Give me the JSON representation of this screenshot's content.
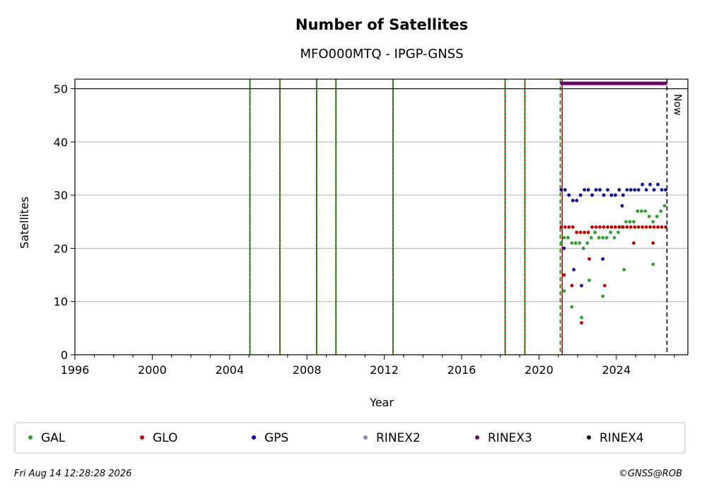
{
  "chart_data": {
    "type": "scatter",
    "title": "Number of Satellites",
    "subtitle": "MFO000MTQ - IPGP-GNSS",
    "xlabel": "Year",
    "ylabel": "Satellites",
    "xlim": [
      1996,
      2027.7
    ],
    "ylim": [
      0,
      51.8
    ],
    "x_ticks": [
      1996,
      2000,
      2004,
      2008,
      2012,
      2016,
      2020,
      2024
    ],
    "y_ticks": [
      0,
      10,
      20,
      30,
      40,
      50
    ],
    "grid": "y",
    "reference_line_y": 50,
    "now_label": "Now",
    "now_x": 2026.62,
    "event_lines_x": [
      2005.05,
      2006.6,
      2008.5,
      2009.5,
      2012.45,
      2018.25,
      2019.27
    ],
    "dashed_line_x": 2021.1,
    "red_line_x": 2021.2,
    "rinex3_bar": {
      "from": 2021.1,
      "to": 2026.62,
      "y": 51
    },
    "series": [
      {
        "name": "GAL",
        "color": "#2ca02c",
        "x": [
          2021.15,
          2021.3,
          2021.5,
          2021.7,
          2021.9,
          2022.1,
          2022.3,
          2022.5,
          2022.7,
          2022.9,
          2023.1,
          2023.3,
          2023.5,
          2023.7,
          2023.9,
          2024.1,
          2024.3,
          2024.5,
          2024.7,
          2024.9,
          2025.1,
          2025.3,
          2025.5,
          2025.7,
          2025.9,
          2026.1,
          2026.3,
          2026.5,
          2021.3,
          2021.7,
          2022.2,
          2022.6,
          2023.3,
          2024.4,
          2025.9
        ],
        "y": [
          21,
          22,
          22,
          21,
          21,
          21,
          20,
          21,
          22,
          23,
          22,
          22,
          22,
          23,
          22,
          23,
          24,
          25,
          25,
          25,
          27,
          27,
          27,
          26,
          25,
          26,
          27,
          28,
          12,
          9,
          7,
          14,
          11,
          16,
          17
        ]
      },
      {
        "name": "GLO",
        "color": "#c00000",
        "x": [
          2021.15,
          2021.35,
          2021.55,
          2021.75,
          2021.95,
          2022.15,
          2022.35,
          2022.55,
          2022.75,
          2022.95,
          2023.15,
          2023.35,
          2023.55,
          2023.75,
          2023.95,
          2024.15,
          2024.35,
          2024.55,
          2024.75,
          2024.95,
          2025.15,
          2025.35,
          2025.55,
          2025.75,
          2025.95,
          2026.15,
          2026.35,
          2026.55,
          2021.3,
          2021.7,
          2022.2,
          2022.6,
          2023.4,
          2024.9,
          2025.9
        ],
        "y": [
          24,
          24,
          24,
          24,
          23,
          23,
          23,
          23,
          24,
          24,
          24,
          24,
          24,
          24,
          24,
          24,
          24,
          24,
          24,
          24,
          24,
          24,
          24,
          24,
          24,
          24,
          24,
          24,
          15,
          13,
          6,
          18,
          13,
          21,
          21
        ]
      },
      {
        "name": "GPS",
        "color": "#00009c",
        "x": [
          2021.15,
          2021.35,
          2021.55,
          2021.75,
          2021.95,
          2022.15,
          2022.35,
          2022.55,
          2022.75,
          2022.95,
          2023.15,
          2023.35,
          2023.55,
          2023.75,
          2023.95,
          2024.15,
          2024.35,
          2024.55,
          2024.75,
          2024.95,
          2025.15,
          2025.35,
          2025.55,
          2025.75,
          2025.95,
          2026.15,
          2026.35,
          2026.55,
          2021.3,
          2021.8,
          2022.2,
          2023.3,
          2024.3
        ],
        "y": [
          31,
          31,
          30,
          29,
          29,
          30,
          31,
          31,
          30,
          31,
          31,
          30,
          31,
          30,
          30,
          31,
          30,
          31,
          31,
          31,
          31,
          32,
          31,
          32,
          31,
          32,
          31,
          31,
          20,
          16,
          13,
          18,
          28
        ]
      },
      {
        "name": "RINEX2",
        "color": "#8c84c8",
        "x": [],
        "y": []
      },
      {
        "name": "RINEX3",
        "color": "#6a0068",
        "x": [],
        "y": []
      },
      {
        "name": "RINEX4",
        "color": "#1a0010",
        "x": [],
        "y": []
      }
    ]
  },
  "footer": {
    "timestamp": "Fri Aug 14 12:28:28 2026",
    "credit": "©GNSS@ROB"
  }
}
